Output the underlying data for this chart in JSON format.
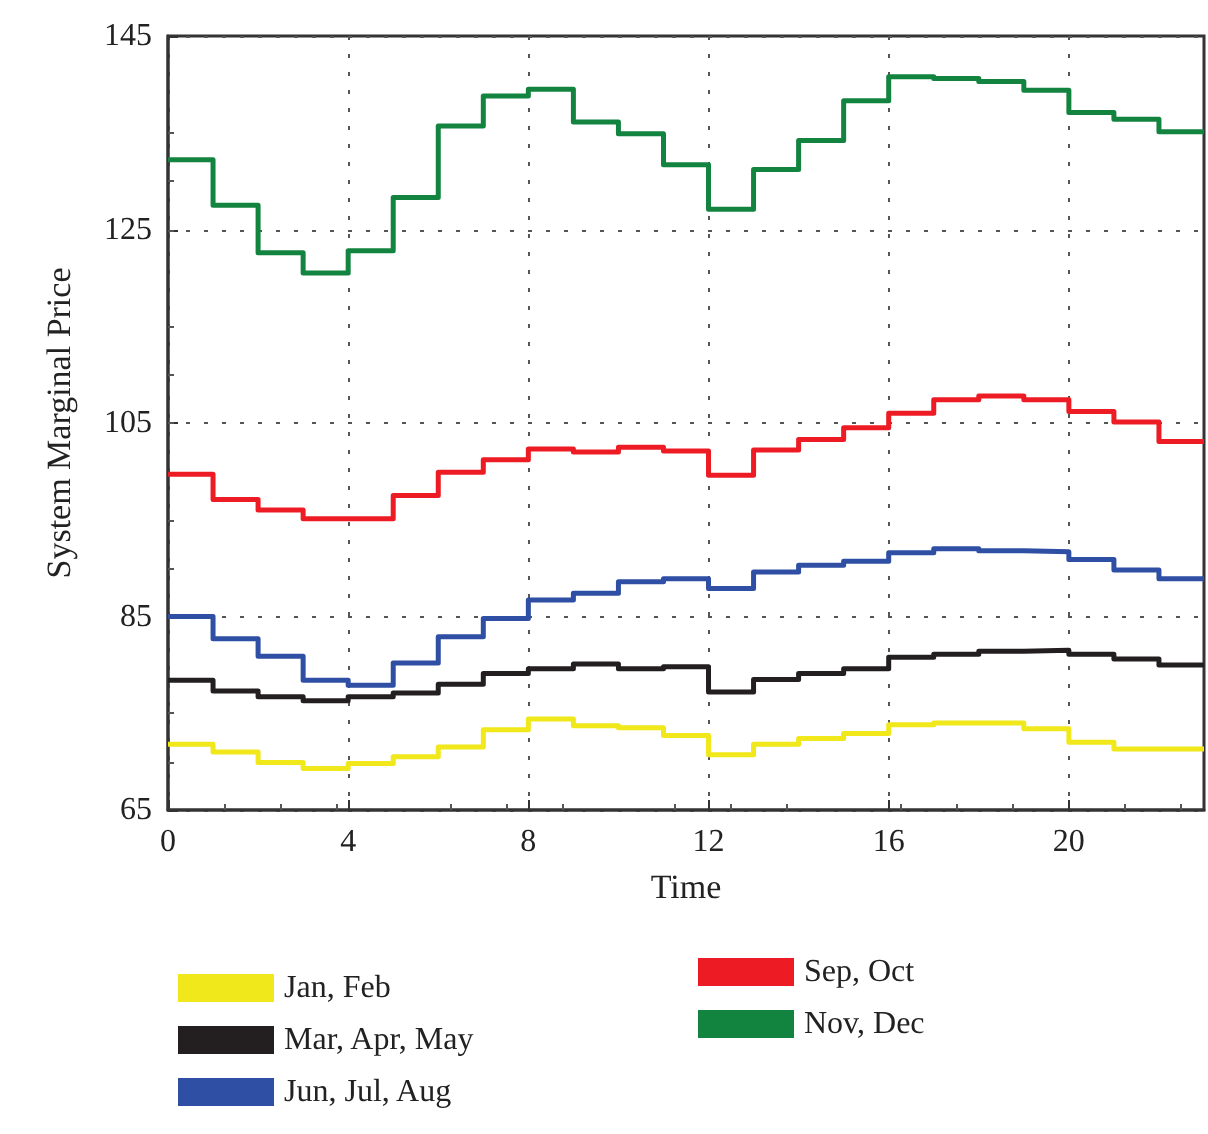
{
  "chart_data": {
    "type": "step",
    "xlabel": "Time",
    "ylabel": "System Marginal Price",
    "x": [
      0,
      1,
      2,
      3,
      4,
      5,
      6,
      7,
      8,
      9,
      10,
      11,
      12,
      13,
      14,
      15,
      16,
      17,
      18,
      19,
      20,
      21,
      22,
      23
    ],
    "xlim": [
      0,
      23
    ],
    "xticks": [
      0,
      4,
      8,
      12,
      16,
      20
    ],
    "ylim": [
      65,
      145
    ],
    "yticks": [
      65,
      85,
      105,
      125,
      145
    ],
    "grid": true,
    "legend": "bottom",
    "marker": "none",
    "line_style": "solid",
    "series": [
      {
        "name": "Jan, Feb",
        "color": "#f0e81a",
        "values": [
          71.8,
          71.0,
          69.9,
          69.3,
          69.8,
          70.5,
          71.5,
          73.3,
          74.4,
          73.7,
          73.5,
          72.7,
          70.7,
          71.8,
          72.4,
          72.9,
          73.8,
          74.0,
          74.0,
          73.4,
          72.0,
          71.3,
          71.3,
          71.3
        ]
      },
      {
        "name": "Mar, Apr, May",
        "color": "#231f20",
        "values": [
          78.4,
          77.3,
          76.7,
          76.3,
          76.7,
          77.1,
          78.0,
          79.1,
          79.6,
          80.1,
          79.6,
          79.8,
          77.2,
          78.5,
          79.1,
          79.6,
          80.8,
          81.1,
          81.4,
          81.5,
          81.1,
          80.6,
          80.0,
          80.0
        ]
      },
      {
        "name": "Jun, Jul, Aug",
        "color": "#2e4fa3",
        "values": [
          85.0,
          82.7,
          80.9,
          78.4,
          77.9,
          80.2,
          82.9,
          84.8,
          86.7,
          87.4,
          88.6,
          88.9,
          87.9,
          89.6,
          90.3,
          90.7,
          91.6,
          92.0,
          91.8,
          91.7,
          90.9,
          89.8,
          88.9,
          88.9
        ]
      },
      {
        "name": "Sep, Oct",
        "color": "#ed1c24",
        "values": [
          99.7,
          97.1,
          96.0,
          95.1,
          95.1,
          97.5,
          99.9,
          101.2,
          102.3,
          102.0,
          102.5,
          102.1,
          99.6,
          102.2,
          103.3,
          104.5,
          106.0,
          107.4,
          107.8,
          107.4,
          106.2,
          105.1,
          103.1,
          103.1
        ]
      },
      {
        "name": "Nov, Dec",
        "color": "#138440",
        "values": [
          132.2,
          127.5,
          122.6,
          120.5,
          122.8,
          128.3,
          135.7,
          138.8,
          139.5,
          136.1,
          134.9,
          131.7,
          127.1,
          131.2,
          134.2,
          138.3,
          140.8,
          140.6,
          140.3,
          139.4,
          137.1,
          136.4,
          135.1,
          135.1
        ]
      }
    ]
  }
}
